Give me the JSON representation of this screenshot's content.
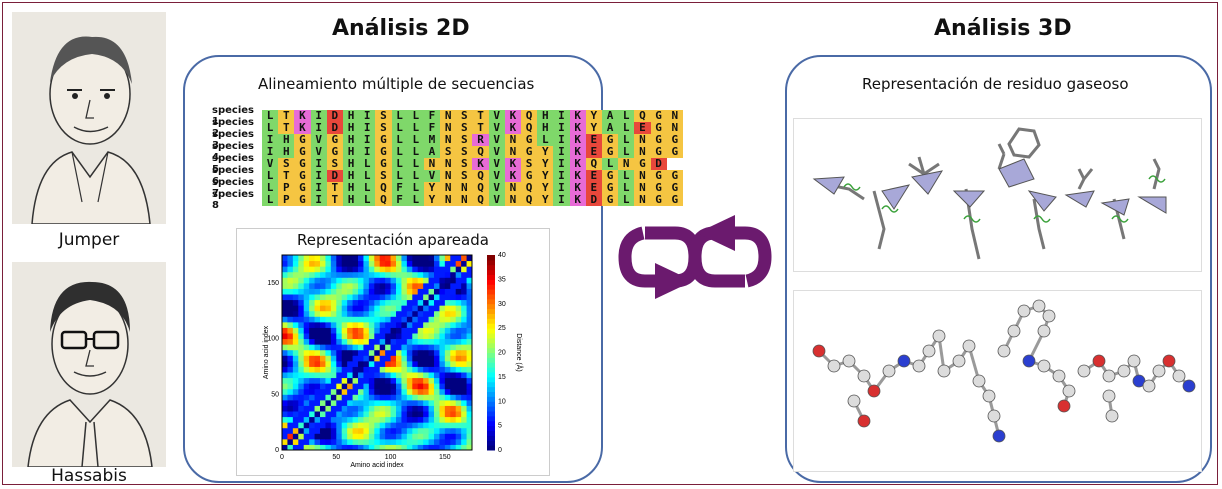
{
  "people": [
    {
      "name": "Jumper"
    },
    {
      "name": "Hassabis"
    }
  ],
  "left_panel": {
    "heading": "Análisis 2D",
    "msa_title": "Alineamiento múltiple de secuencias",
    "sequences": [
      {
        "label": "species 1",
        "seq": "LTKIDHISLLFNSTVKQHIKYALQGN"
      },
      {
        "label": "species 2",
        "seq": "LTKIDHISLLFNSTVKQHIKYALEGN"
      },
      {
        "label": "species 3",
        "seq": "IHGVGHIGLLMNSRVNGLIKEGLNGG"
      },
      {
        "label": "species 4",
        "seq": "IHGVGHIGLLASSQVNGYIKEGLNGG"
      },
      {
        "label": "species 5",
        "seq": "VSGISHLGLLNNSKVKSYIKQLNGD"
      },
      {
        "label": "species 6",
        "seq": "LTGIDHLSLLVNSQVKGYIKEGLNGG"
      },
      {
        "label": "species 7",
        "seq": "LPGITHLQFLYNNQVNQYIKEGLNGG"
      },
      {
        "label": "species 8",
        "seq": "LPGITHLQFLYNNQVNQYIKDGLNGG"
      }
    ],
    "residue_colors": {
      "L": "#7fd86a",
      "I": "#7fd86a",
      "V": "#7fd86a",
      "F": "#7fd86a",
      "M": "#7fd86a",
      "A": "#7fd86a",
      "W": "#7fd86a",
      "T": "#f5c542",
      "S": "#f5c542",
      "G": "#f5c542",
      "Y": "#f5c542",
      "N": "#f5c542",
      "Q": "#f5c542",
      "K": "#e76bd6",
      "R": "#e76bd6",
      "H": "#7fd86a",
      "D": "#e8473b",
      "E": "#e8473b",
      "C": "#f5c542",
      "P": "#f5c542"
    },
    "heatmap_title": "Representación apareada",
    "chart_data": {
      "type": "heatmap",
      "xlabel": "Amino acid index",
      "ylabel": "Amino acid index",
      "colorbar_label": "Distance (Å)",
      "x_ticks": [
        "0",
        "50",
        "100",
        "150"
      ],
      "y_ticks": [
        "0",
        "50",
        "100",
        "150"
      ],
      "colorbar_ticks": [
        "0",
        "5",
        "10",
        "15",
        "20",
        "25",
        "30",
        "35",
        "40"
      ],
      "xlim": [
        0,
        175
      ],
      "ylim": [
        0,
        175
      ],
      "clim": [
        0,
        40
      ]
    }
  },
  "right_panel": {
    "heading": "Análisis 3D",
    "subtitle": "Representación de residuo gaseoso"
  },
  "colors": {
    "panel_border": "#4a6aa6",
    "frame": "#7a1f3a",
    "cycle_arrows": "#6b1a6e"
  }
}
